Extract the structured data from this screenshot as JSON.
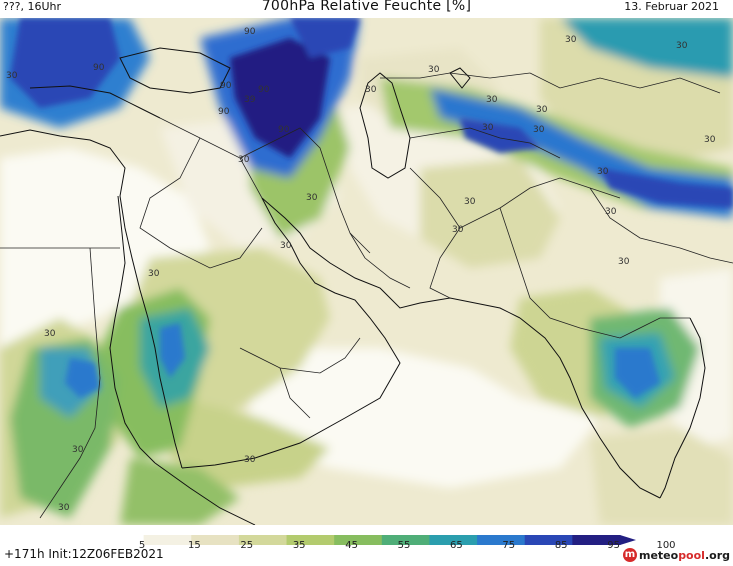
{
  "header": {
    "left": "???, 16Uhr",
    "title": "700hPa Relative Feuchte [%]",
    "date": "13. Februar 2021"
  },
  "footer": {
    "run_info": "+171h Init:12Z06FEB2021",
    "logo_text_a": "meteo",
    "logo_text_b": "pool",
    "logo_text_c": ".org"
  },
  "colorbar": {
    "labels": [
      "5",
      "15",
      "25",
      "35",
      "45",
      "55",
      "65",
      "75",
      "85",
      "95",
      "100"
    ],
    "colors": [
      "#ffffff",
      "#f4f1e3",
      "#e7e2c2",
      "#d3d89b",
      "#b3cb6e",
      "#87bd5f",
      "#4fae78",
      "#2b9eae",
      "#2b79cd",
      "#2a47b5",
      "#231f82"
    ]
  },
  "map": {
    "contour_labels": [
      "90",
      "90",
      "90",
      "90",
      "39",
      "90",
      "90",
      "30",
      "30",
      "30",
      "30",
      "30",
      "30",
      "30",
      "30",
      "30",
      "30",
      "30",
      "30",
      "30",
      "30",
      "30",
      "30",
      "30",
      "30",
      "30",
      "30",
      "30",
      "30",
      "30"
    ]
  }
}
